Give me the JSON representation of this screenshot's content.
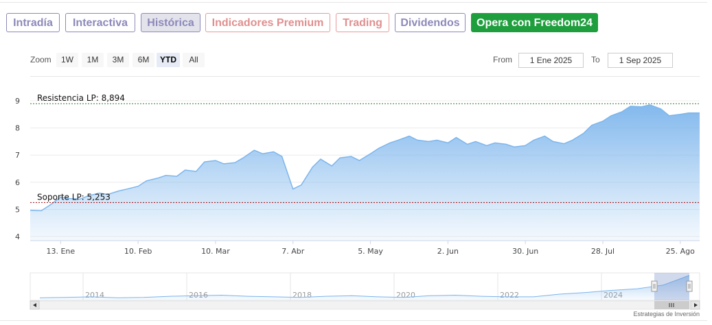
{
  "tabs": [
    {
      "label": "Intradía",
      "style": "default"
    },
    {
      "label": "Interactiva",
      "style": "default"
    },
    {
      "label": "Histórica",
      "style": "active"
    },
    {
      "label": "Indicadores Premium",
      "style": "red"
    },
    {
      "label": "Trading",
      "style": "red"
    },
    {
      "label": "Dividendos",
      "style": "default"
    },
    {
      "label": "Opera con Freedom24",
      "style": "green"
    }
  ],
  "zoom": {
    "label": "Zoom",
    "options": [
      "1W",
      "1M",
      "3M",
      "6M",
      "YTD",
      "All"
    ],
    "selected": "YTD"
  },
  "range": {
    "from_label": "From",
    "from_value": "1 Ene 2025",
    "to_label": "To",
    "to_value": "1 Sep 2025"
  },
  "colors": {
    "accent": "#7cb5ec",
    "resistance": "#2e7d32",
    "support": "#a00000",
    "tab_default": "#8c89b9",
    "tab_red": "#e08f8f",
    "tab_green": "#1f9e3e"
  },
  "chart_data": {
    "type": "area",
    "x": [
      "2025-01-02",
      "2025-01-06",
      "2025-01-09",
      "2025-01-13",
      "2025-01-16",
      "2025-01-20",
      "2025-01-23",
      "2025-01-27",
      "2025-01-30",
      "2025-02-03",
      "2025-02-06",
      "2025-02-10",
      "2025-02-13",
      "2025-02-17",
      "2025-02-20",
      "2025-02-24",
      "2025-02-27",
      "2025-03-03",
      "2025-03-06",
      "2025-03-10",
      "2025-03-13",
      "2025-03-17",
      "2025-03-20",
      "2025-03-24",
      "2025-03-27",
      "2025-03-31",
      "2025-04-03",
      "2025-04-07",
      "2025-04-10",
      "2025-04-14",
      "2025-04-17",
      "2025-04-21",
      "2025-04-24",
      "2025-04-28",
      "2025-05-01",
      "2025-05-05",
      "2025-05-08",
      "2025-05-12",
      "2025-05-15",
      "2025-05-19",
      "2025-05-22",
      "2025-05-26",
      "2025-05-29",
      "2025-06-02",
      "2025-06-05",
      "2025-06-09",
      "2025-06-12",
      "2025-06-16",
      "2025-06-19",
      "2025-06-23",
      "2025-06-26",
      "2025-06-30",
      "2025-07-03",
      "2025-07-07",
      "2025-07-10",
      "2025-07-14",
      "2025-07-17",
      "2025-07-21",
      "2025-07-24",
      "2025-07-28",
      "2025-07-31",
      "2025-08-04",
      "2025-08-07",
      "2025-08-11",
      "2025-08-14",
      "2025-08-18",
      "2025-08-21",
      "2025-08-25",
      "2025-08-28",
      "2025-09-01"
    ],
    "values": [
      4.97,
      4.95,
      5.15,
      5.45,
      5.4,
      5.38,
      5.5,
      5.6,
      5.55,
      5.68,
      5.75,
      5.85,
      6.05,
      6.15,
      6.25,
      6.22,
      6.45,
      6.4,
      6.75,
      6.8,
      6.68,
      6.72,
      6.9,
      7.18,
      7.05,
      7.12,
      6.95,
      5.75,
      5.9,
      6.55,
      6.85,
      6.6,
      6.9,
      6.95,
      6.8,
      7.05,
      7.25,
      7.45,
      7.55,
      7.7,
      7.55,
      7.5,
      7.55,
      7.45,
      7.65,
      7.4,
      7.5,
      7.35,
      7.45,
      7.4,
      7.3,
      7.35,
      7.55,
      7.7,
      7.5,
      7.42,
      7.55,
      7.8,
      8.1,
      8.25,
      8.45,
      8.6,
      8.8,
      8.78,
      8.85,
      8.7,
      8.45,
      8.5,
      8.55,
      8.55
    ],
    "ylim": [
      4,
      9
    ],
    "yticks": [
      "4",
      "5",
      "6",
      "7",
      "8",
      "9"
    ],
    "xticks": [
      "13. Ene",
      "10. Feb",
      "10. Mar",
      "7. Abr",
      "5. May",
      "2. Jun",
      "30. Jun",
      "28. Jul",
      "25. Ago"
    ],
    "xtick_dates": [
      "2025-01-13",
      "2025-02-10",
      "2025-03-10",
      "2025-04-07",
      "2025-05-05",
      "2025-06-02",
      "2025-06-30",
      "2025-07-28",
      "2025-08-25"
    ],
    "hlines": [
      {
        "label": "Resistencia LP: 8,894",
        "value": 8.894
      },
      {
        "label": "Soporte LP: 5,253",
        "value": 5.253
      }
    ],
    "grid": true,
    "navigator": {
      "years": [
        "2014",
        "2016",
        "2018",
        "2020",
        "2022",
        "2024"
      ],
      "values": [
        4.6,
        4.7,
        4.8,
        4.6,
        4.7,
        4.9,
        5.0,
        5.1,
        4.9,
        4.8,
        4.7,
        4.9,
        5.0,
        4.8,
        4.7,
        5.0,
        5.1,
        4.9,
        4.8,
        4.8,
        5.3,
        5.6,
        6.0,
        6.3,
        7.0,
        8.8
      ]
    }
  },
  "footer": {
    "credit": "Estrategias de Inversión"
  }
}
